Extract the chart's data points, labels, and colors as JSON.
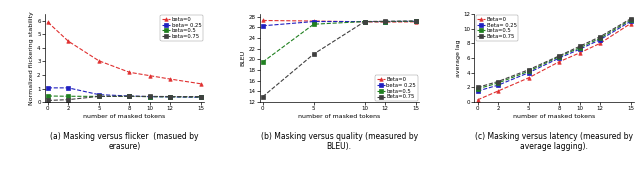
{
  "plot1": {
    "xlabel": "number of masked tokens",
    "ylabel": "Normalized flickering stability",
    "x": [
      0,
      2,
      5,
      8,
      10,
      12,
      15
    ],
    "series": [
      {
        "label": "beta=0",
        "color": "#e03030",
        "marker": "^",
        "linestyle": "--",
        "values": [
          5.9,
          4.5,
          3.05,
          2.2,
          1.95,
          1.7,
          1.35
        ]
      },
      {
        "label": "beta= 0.25",
        "color": "#2020c0",
        "marker": "s",
        "linestyle": "--",
        "values": [
          1.05,
          1.05,
          0.55,
          0.45,
          0.4,
          0.38,
          0.35
        ]
      },
      {
        "label": "beta=0.5",
        "color": "#208020",
        "marker": "s",
        "linestyle": "--",
        "values": [
          0.45,
          0.43,
          0.42,
          0.42,
          0.4,
          0.39,
          0.38
        ]
      },
      {
        "label": "beta=0.75",
        "color": "#404040",
        "marker": "s",
        "linestyle": "--",
        "values": [
          0.12,
          0.18,
          0.42,
          0.43,
          0.42,
          0.41,
          0.4
        ]
      }
    ],
    "ylim": [
      0,
      6.5
    ],
    "xlim": [
      -0.3,
      15.3
    ],
    "yticks": [
      0,
      1,
      2,
      3,
      4,
      5,
      6
    ],
    "xticks": [
      0,
      2,
      5,
      8,
      10,
      12,
      15
    ],
    "legend_loc": "upper right",
    "caption": "(a) Masking versus flicker  (masued by\nerasure)"
  },
  "plot2": {
    "xlabel": "number of masked tokens",
    "ylabel": "BLEU",
    "x": [
      0,
      5,
      10,
      12,
      15
    ],
    "series": [
      {
        "label": "Beta=0",
        "color": "#e03030",
        "marker": "^",
        "linestyle": "--",
        "values": [
          27.3,
          27.2,
          27.05,
          27.0,
          27.05
        ]
      },
      {
        "label": "beta= 0.25",
        "color": "#2020c0",
        "marker": "s",
        "linestyle": "--",
        "values": [
          26.3,
          27.1,
          27.1,
          27.1,
          27.15
        ]
      },
      {
        "label": "beta=0.5",
        "color": "#208020",
        "marker": "s",
        "linestyle": "--",
        "values": [
          19.5,
          26.6,
          27.1,
          27.1,
          27.15
        ]
      },
      {
        "label": "Beta=0.75",
        "color": "#404040",
        "marker": "s",
        "linestyle": "--",
        "values": [
          13.0,
          21.0,
          27.1,
          27.15,
          27.2
        ]
      }
    ],
    "ylim": [
      12,
      28.5
    ],
    "xlim": [
      -0.3,
      15.3
    ],
    "yticks": [
      12,
      14,
      16,
      18,
      20,
      22,
      24,
      26,
      28
    ],
    "xticks": [
      0,
      5,
      10,
      12,
      15
    ],
    "legend_loc": "lower right",
    "caption": "(b) Masking versus quality (measured by\nBLEU)."
  },
  "plot3": {
    "xlabel": "number of masked tokens",
    "ylabel": "average lag",
    "x": [
      0,
      2,
      5,
      8,
      10,
      12,
      15
    ],
    "series": [
      {
        "label": "Beta=0",
        "color": "#e03030",
        "marker": "^",
        "linestyle": "--",
        "values": [
          0.3,
          1.5,
          3.3,
          5.5,
          6.7,
          8.0,
          10.7
        ]
      },
      {
        "label": "Beta= 0.25",
        "color": "#2020c0",
        "marker": "s",
        "linestyle": "--",
        "values": [
          1.5,
          2.3,
          4.0,
          6.0,
          7.2,
          8.5,
          11.0
        ]
      },
      {
        "label": "beta=0.5",
        "color": "#208020",
        "marker": "s",
        "linestyle": "--",
        "values": [
          1.8,
          2.6,
          4.2,
          6.2,
          7.4,
          8.7,
          11.2
        ]
      },
      {
        "label": "Beta=0.75",
        "color": "#404040",
        "marker": "s",
        "linestyle": "--",
        "values": [
          2.0,
          2.8,
          4.4,
          6.3,
          7.6,
          8.9,
          11.35
        ]
      }
    ],
    "ylim": [
      0,
      12
    ],
    "xlim": [
      -0.3,
      15.3
    ],
    "yticks": [
      0,
      2,
      4,
      6,
      8,
      10,
      12
    ],
    "xticks": [
      0,
      2,
      5,
      8,
      10,
      12,
      15
    ],
    "legend_loc": "upper left",
    "caption": "(c) Masking versus latency (measured by\naverage lagging)."
  }
}
